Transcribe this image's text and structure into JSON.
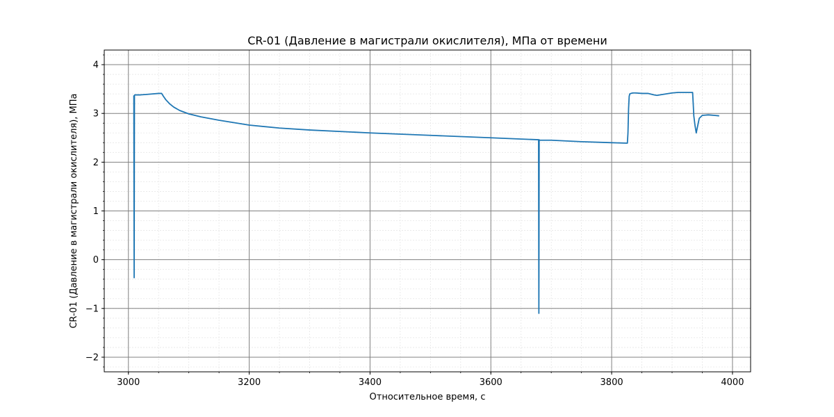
{
  "chart_data": {
    "type": "line",
    "title": "CR-01 (Давление в магистрали окислителя), МПа от времени",
    "xlabel": "Относительное время, с",
    "ylabel": "CR-01 (Давление в магистрали окислителя), МПа",
    "xlim": [
      2960,
      4030
    ],
    "ylim": [
      -2.3,
      4.3
    ],
    "x_ticks": [
      3000,
      3200,
      3400,
      3600,
      3800,
      4000
    ],
    "x_tick_labels": [
      "3000",
      "3200",
      "3400",
      "3600",
      "3800",
      "4000"
    ],
    "y_ticks": [
      -2,
      -1,
      0,
      1,
      2,
      3,
      4
    ],
    "y_tick_labels": [
      "−2",
      "−1",
      "0",
      "1",
      "2",
      "3",
      "4"
    ],
    "x_minor_step": 50,
    "y_minor_step": 0.2,
    "grid": "major and minor",
    "line_color": "#1f77b4",
    "major_grid_color": "#808080",
    "minor_grid_color": "#e6e6e6",
    "series": [
      {
        "x": [
          3009,
          3009.5,
          3010,
          3010.5,
          3011,
          3020,
          3030,
          3040,
          3050,
          3055,
          3058,
          3062,
          3068,
          3075,
          3085,
          3100,
          3120,
          3150,
          3200,
          3250,
          3300,
          3400,
          3500,
          3600,
          3679,
          3679.5,
          3680,
          3680.5,
          3681,
          3700,
          3750,
          3800,
          3826,
          3827,
          3828,
          3829,
          3830,
          3832,
          3835,
          3840,
          3850,
          3860,
          3870,
          3875,
          3880,
          3890,
          3900,
          3910,
          3920,
          3934,
          3935,
          3936,
          3938,
          3940,
          3942,
          3945,
          3950,
          3960,
          3970,
          3978
        ],
        "y": [
          3.37,
          -0.37,
          3.37,
          3.38,
          3.38,
          3.38,
          3.39,
          3.4,
          3.41,
          3.41,
          3.35,
          3.28,
          3.2,
          3.13,
          3.06,
          2.99,
          2.93,
          2.86,
          2.76,
          2.7,
          2.66,
          2.6,
          2.55,
          2.5,
          2.46,
          -1.1,
          2.46,
          2.45,
          2.45,
          2.45,
          2.42,
          2.4,
          2.39,
          2.6,
          3.1,
          3.35,
          3.4,
          3.41,
          3.42,
          3.42,
          3.41,
          3.41,
          3.38,
          3.37,
          3.38,
          3.4,
          3.42,
          3.43,
          3.43,
          3.43,
          3.2,
          2.95,
          2.75,
          2.6,
          2.72,
          2.9,
          2.96,
          2.97,
          2.96,
          2.95
        ]
      }
    ]
  }
}
